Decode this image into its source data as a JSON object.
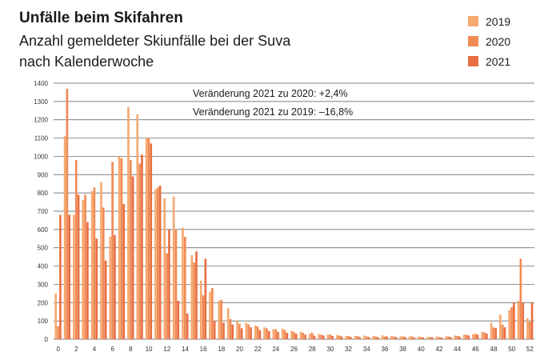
{
  "chart_data": {
    "type": "bar",
    "title": "Unfälle beim Skifahren",
    "subtitle_line1": "Anzahl gemeldeter Skiunfälle bei der Suva",
    "subtitle_line2": "nach Kalenderwoche",
    "xlabel": "",
    "ylabel": "",
    "ylim": [
      0,
      1400
    ],
    "yticks": [
      0,
      100,
      200,
      300,
      400,
      500,
      600,
      700,
      800,
      900,
      1000,
      1100,
      1200,
      1300,
      1400
    ],
    "xticks": [
      0,
      2,
      4,
      6,
      8,
      10,
      12,
      14,
      16,
      18,
      20,
      22,
      24,
      26,
      28,
      30,
      32,
      34,
      36,
      38,
      40,
      42,
      44,
      46,
      48,
      50,
      52
    ],
    "grid": true,
    "legend_position": "top-right",
    "annotations": [
      "Veränderung 2021 zu 2020: +2,4%",
      "Veränderung 2021 zu 2019: –16,8%"
    ],
    "categories": [
      0,
      1,
      2,
      3,
      4,
      5,
      6,
      7,
      8,
      9,
      10,
      11,
      12,
      13,
      14,
      15,
      16,
      17,
      18,
      19,
      20,
      21,
      22,
      23,
      24,
      25,
      26,
      27,
      28,
      29,
      30,
      31,
      32,
      33,
      34,
      35,
      36,
      37,
      38,
      39,
      40,
      41,
      42,
      43,
      44,
      45,
      46,
      47,
      48,
      49,
      50,
      51,
      52
    ],
    "series": [
      {
        "name": "2019",
        "color": "#f6a86e",
        "values": [
          250,
          1110,
          680,
          760,
          810,
          860,
          560,
          1000,
          1270,
          1230,
          1100,
          820,
          770,
          780,
          610,
          460,
          320,
          260,
          210,
          170,
          100,
          90,
          75,
          65,
          55,
          58,
          45,
          40,
          30,
          28,
          25,
          22,
          18,
          18,
          20,
          18,
          22,
          18,
          15,
          15,
          15,
          12,
          15,
          15,
          20,
          25,
          28,
          40,
          90,
          135,
          160,
          210,
          115
        ]
      },
      {
        "name": "2020",
        "color": "#ef8a55",
        "values": [
          70,
          1370,
          980,
          790,
          830,
          720,
          970,
          990,
          980,
          960,
          1100,
          830,
          470,
          600,
          560,
          420,
          240,
          280,
          215,
          110,
          85,
          80,
          70,
          60,
          55,
          50,
          40,
          35,
          35,
          25,
          25,
          20,
          18,
          18,
          15,
          15,
          15,
          15,
          15,
          15,
          12,
          12,
          12,
          15,
          18,
          25,
          30,
          38,
          65,
          80,
          175,
          440,
          95
        ]
      },
      {
        "name": "2021",
        "color": "#e86e42",
        "values": [
          680,
          680,
          790,
          640,
          550,
          430,
          570,
          740,
          890,
          1010,
          1070,
          840,
          600,
          210,
          140,
          480,
          440,
          100,
          90,
          80,
          60,
          65,
          50,
          45,
          40,
          35,
          30,
          25,
          20,
          20,
          18,
          15,
          12,
          12,
          12,
          12,
          15,
          12,
          12,
          10,
          10,
          10,
          10,
          12,
          15,
          20,
          25,
          30,
          60,
          65,
          200,
          200,
          200
        ]
      }
    ]
  }
}
